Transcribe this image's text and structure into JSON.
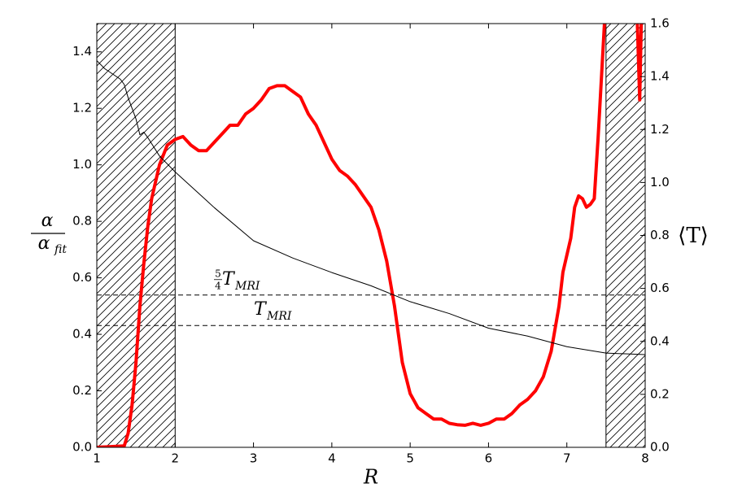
{
  "chart_data": {
    "type": "line",
    "xlabel": "R",
    "ylabel": {
      "numerator": "α",
      "denominator": "α",
      "denominator_subscript": "fit"
    },
    "y2label": "⟨T⟩",
    "xlim": [
      1,
      8
    ],
    "xticks": [
      1,
      2,
      3,
      4,
      5,
      6,
      7,
      8
    ],
    "ylim": [
      0,
      1.5
    ],
    "yticks": [
      {
        "value": 0,
        "label": "0.0"
      },
      0.2,
      0.4,
      0.6,
      0.8,
      {
        "value": 1,
        "label": "1.0"
      },
      1.2,
      1.4
    ],
    "y2lim": [
      0,
      1.6
    ],
    "y2ticks": [
      {
        "value": 0,
        "label": "0.0"
      },
      0.2,
      0.4,
      0.6,
      0.8,
      {
        "value": 1,
        "label": "1.0"
      },
      1.2,
      1.4,
      1.6
    ],
    "shaded_regions": [
      [
        1,
        2
      ],
      [
        7.5,
        8
      ]
    ],
    "series": [
      {
        "color": "#ff0000",
        "x": [
          1.0,
          1.35,
          1.4,
          1.45,
          1.5,
          1.55,
          1.6,
          1.65,
          1.7,
          1.8,
          1.9,
          2.0,
          2.1,
          2.2,
          2.3,
          2.4,
          2.5,
          2.6,
          2.7,
          2.8,
          2.9,
          3.0,
          3.1,
          3.2,
          3.3,
          3.4,
          3.5,
          3.6,
          3.7,
          3.8,
          3.9,
          4.0,
          4.1,
          4.2,
          4.3,
          4.4,
          4.5,
          4.6,
          4.7,
          4.8,
          4.9,
          5.0,
          5.1,
          5.2,
          5.3,
          5.4,
          5.5,
          5.6,
          5.7,
          5.8,
          5.9,
          6.0,
          6.1,
          6.2,
          6.3,
          6.4,
          6.5,
          6.6,
          6.7,
          6.8,
          6.9,
          6.95,
          7.05,
          7.1,
          7.15,
          7.2,
          7.25,
          7.3,
          7.35,
          7.4,
          7.45,
          7.48,
          7.7,
          7.9,
          7.92,
          7.93,
          7.95
        ],
        "values": [
          0,
          0.005,
          0.05,
          0.15,
          0.3,
          0.5,
          0.65,
          0.78,
          0.88,
          1.0,
          1.07,
          1.09,
          1.1,
          1.07,
          1.05,
          1.05,
          1.08,
          1.11,
          1.14,
          1.14,
          1.18,
          1.2,
          1.23,
          1.27,
          1.28,
          1.28,
          1.26,
          1.24,
          1.18,
          1.14,
          1.08,
          1.02,
          0.98,
          0.96,
          0.93,
          0.89,
          0.85,
          0.77,
          0.66,
          0.5,
          0.3,
          0.19,
          0.14,
          0.12,
          0.1,
          0.1,
          0.085,
          0.08,
          0.078,
          0.085,
          0.078,
          0.085,
          0.1,
          0.1,
          0.12,
          0.15,
          0.17,
          0.2,
          0.25,
          0.34,
          0.5,
          0.62,
          0.74,
          0.85,
          0.89,
          0.88,
          0.85,
          0.86,
          0.88,
          1.1,
          1.35,
          1.5,
          null,
          1.5,
          1.32,
          1.23,
          1.5
        ]
      },
      {
        "color": "#000000",
        "axis": "y2",
        "x": [
          1.0,
          1.1,
          1.2,
          1.3,
          1.35,
          1.4,
          1.5,
          1.55,
          1.6,
          1.65,
          1.8,
          2.0,
          2.5,
          3.0,
          3.5,
          4.0,
          4.5,
          5.0,
          5.5,
          6.0,
          6.5,
          7.0,
          7.5,
          8.0
        ],
        "values": [
          1.46,
          1.43,
          1.41,
          1.39,
          1.37,
          1.32,
          1.24,
          1.18,
          1.19,
          1.17,
          1.1,
          1.04,
          0.905,
          0.78,
          0.715,
          0.66,
          0.61,
          0.55,
          0.505,
          0.45,
          0.42,
          0.38,
          0.356,
          0.35
        ]
      }
    ],
    "hlines": [
      {
        "value": 0.575,
        "axis": "y2",
        "prefix_numerator": "5",
        "prefix_denominator": "4",
        "symbol": "T",
        "subscript": "MRI"
      },
      {
        "value": 0.46,
        "axis": "y2",
        "symbol": "T",
        "subscript": "MRI"
      }
    ]
  }
}
